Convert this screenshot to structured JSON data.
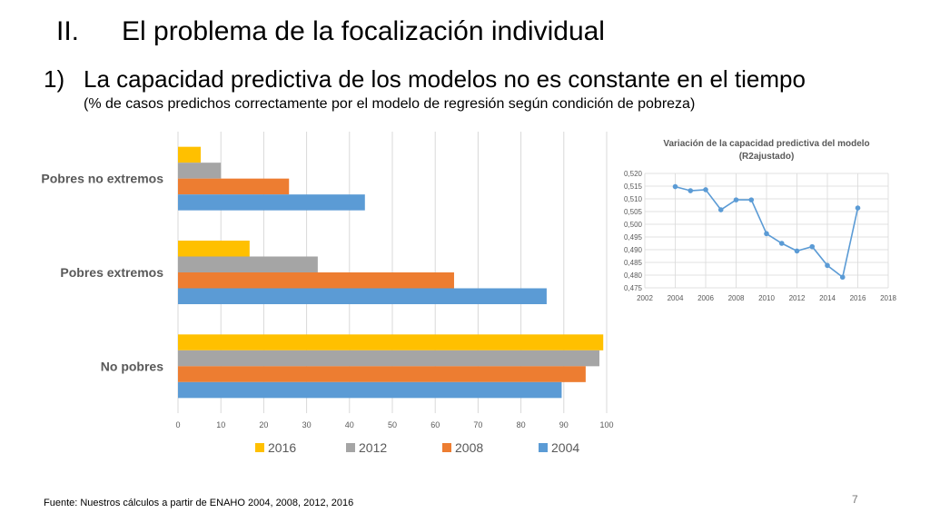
{
  "slide": {
    "section_number": "II.",
    "section_title": "El problema de la focalización individual",
    "point_number": "1)",
    "point_title": "La capacidad predictiva de los modelos no es constante en el tiempo",
    "point_note": "(% de casos predichos correctamente por el modelo de regresión según condición de pobreza)",
    "source": "Fuente: Nuestros cálculos a partir de ENAHO 2004, 2008, 2012, 2016",
    "page_number": "7"
  },
  "chart_data": [
    {
      "type": "bar",
      "orientation": "horizontal",
      "categories": [
        "Pobres no extremos",
        "Pobres extremos",
        "No pobres"
      ],
      "series": [
        {
          "name": "2016",
          "color": "#FFC000",
          "values": [
            5.3,
            16.7,
            99.2
          ]
        },
        {
          "name": "2012",
          "color": "#A5A5A5",
          "values": [
            10.0,
            32.6,
            98.3
          ]
        },
        {
          "name": "2008",
          "color": "#ED7D31",
          "values": [
            25.9,
            64.4,
            95.1
          ]
        },
        {
          "name": "2004",
          "color": "#5B9BD5",
          "values": [
            43.6,
            86.0,
            89.5
          ]
        }
      ],
      "xlim": [
        0,
        100
      ],
      "xticks": [
        0,
        10,
        20,
        30,
        40,
        50,
        60,
        70,
        80,
        90,
        100
      ],
      "grid": true,
      "legend_position": "bottom"
    },
    {
      "type": "line",
      "title": "Variación de la capacidad predictiva del modelo",
      "subtitle": "(R2ajustado)",
      "color": "#5B9BD5",
      "x": [
        2004,
        2005,
        2006,
        2007,
        2008,
        2009,
        2010,
        2011,
        2012,
        2013,
        2014,
        2015,
        2016
      ],
      "y": [
        0.5148,
        0.5132,
        0.5136,
        0.5057,
        0.5096,
        0.5096,
        0.4963,
        0.4925,
        0.4895,
        0.4912,
        0.4838,
        0.4792,
        0.5064
      ],
      "xlim": [
        2002,
        2018
      ],
      "ylim": [
        0.475,
        0.52
      ],
      "xticks": [
        "2002",
        "2004",
        "2006",
        "2008",
        "2010",
        "2012",
        "2014",
        "2016",
        "2018"
      ],
      "yticks": [
        "0,475",
        "0,480",
        "0,485",
        "0,490",
        "0,495",
        "0,500",
        "0,505",
        "0,510",
        "0,515",
        "0,520"
      ],
      "grid": true
    }
  ]
}
